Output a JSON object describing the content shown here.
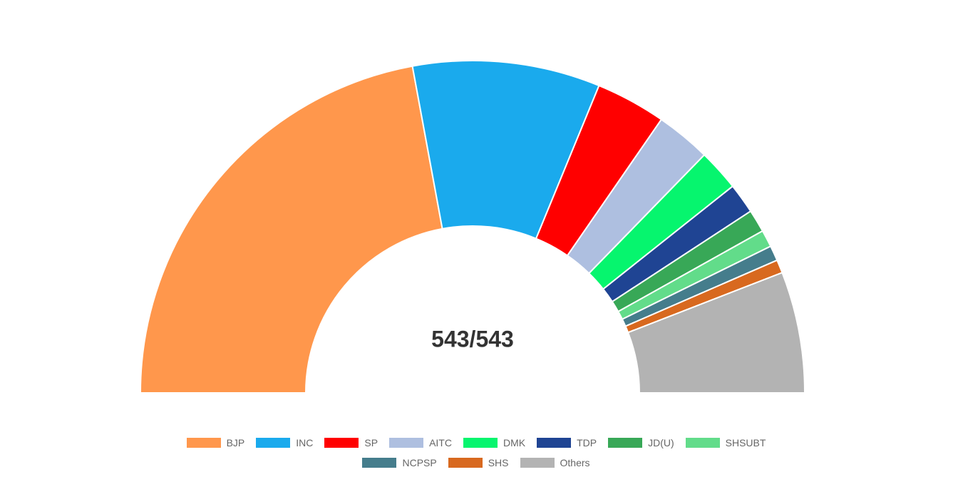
{
  "chart_data": {
    "type": "pie",
    "center_label": "543/543",
    "categories": [
      "BJP",
      "INC",
      "SP",
      "AITC",
      "DMK",
      "TDP",
      "JD(U)",
      "SHSUBT",
      "NCPSP",
      "SHS",
      "Others"
    ],
    "values": [
      240,
      99,
      37,
      29,
      22,
      16,
      12,
      9,
      8,
      7,
      64
    ],
    "colors": [
      "#ff974c",
      "#1aaaed",
      "#ff0000",
      "#aebfe0",
      "#06f56e",
      "#1f4493",
      "#38a857",
      "#62dc8a",
      "#457d8c",
      "#d8691f",
      "#b3b3b3"
    ]
  }
}
